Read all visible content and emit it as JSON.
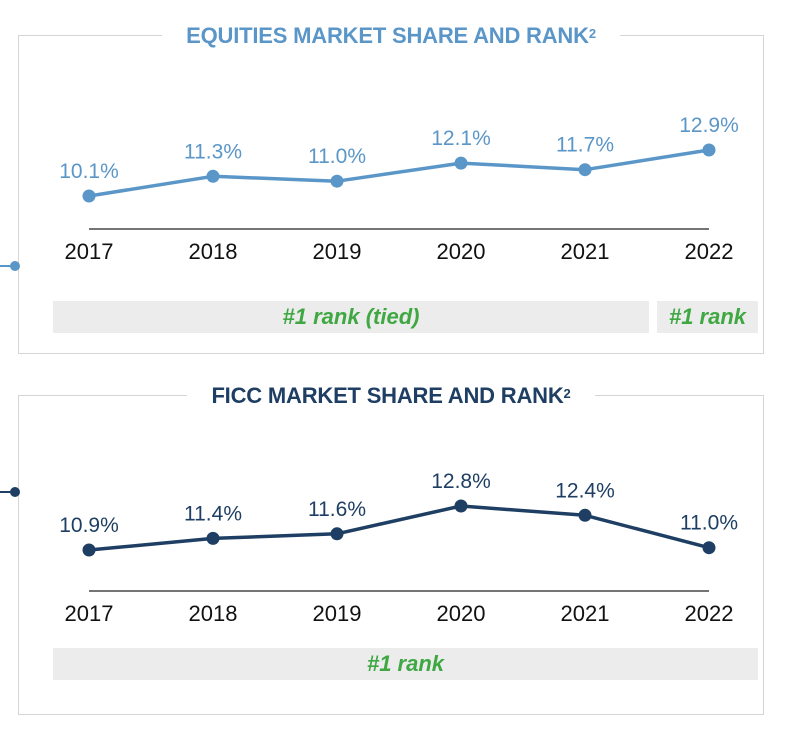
{
  "equities": {
    "title": "EQUITIES MARKET SHARE AND RANK",
    "superscript": "2",
    "rank_labels": [
      "#1 rank (tied)",
      "#1 rank"
    ],
    "colors": {
      "line": "#5b96c8",
      "rank_text": "#3fa843",
      "rank_bg": "#ececec"
    }
  },
  "ficc": {
    "title": "FICC MARKET SHARE AND RANK",
    "superscript": "2",
    "rank_labels": [
      "#1 rank"
    ],
    "colors": {
      "line": "#1e3f63",
      "rank_text": "#3fa843",
      "rank_bg": "#ececec"
    }
  },
  "chart_data": [
    {
      "type": "line",
      "title": "EQUITIES MARKET SHARE AND RANK",
      "categories": [
        "2017",
        "2018",
        "2019",
        "2020",
        "2021",
        "2022"
      ],
      "values": [
        10.1,
        11.3,
        11.0,
        12.1,
        11.7,
        12.9
      ],
      "data_labels": [
        "10.1%",
        "11.3%",
        "11.0%",
        "12.1%",
        "11.7%",
        "12.9%"
      ],
      "grid": false
    },
    {
      "type": "line",
      "title": "FICC MARKET SHARE AND RANK",
      "categories": [
        "2017",
        "2018",
        "2019",
        "2020",
        "2021",
        "2022"
      ],
      "values": [
        10.9,
        11.4,
        11.6,
        12.8,
        12.4,
        11.0
      ],
      "data_labels": [
        "10.9%",
        "11.4%",
        "11.6%",
        "12.8%",
        "12.4%",
        "11.0%"
      ],
      "grid": false
    }
  ]
}
